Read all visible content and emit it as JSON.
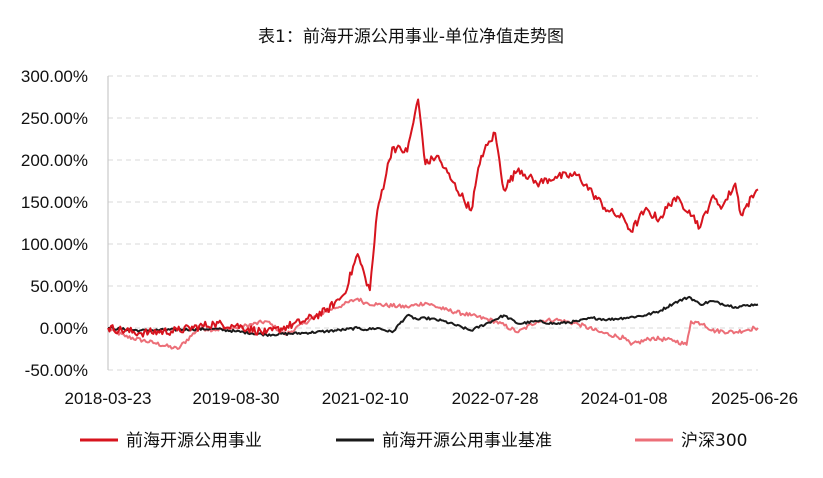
{
  "chart_data": {
    "type": "line",
    "title": "表1：前海开源公用事业-单位净值走势图",
    "xlabel": "",
    "ylabel": "",
    "x_tick_labels": [
      "2018-03-23",
      "2019-08-30",
      "2021-02-10",
      "2022-07-28",
      "2024-01-08",
      "2025-06-26"
    ],
    "y_tick_labels": [
      "300.00%",
      "250.00%",
      "200.00%",
      "150.00%",
      "100.00%",
      "50.00%",
      "0.00%",
      "-50.00%"
    ],
    "y_ticks": [
      300,
      250,
      200,
      150,
      100,
      50,
      0,
      -50
    ],
    "ylim": [
      -50,
      300
    ],
    "xlim": [
      "2018-03-23",
      "2025-07-10"
    ],
    "grid": "horizontal-dashed",
    "legend_position": "bottom",
    "series": [
      {
        "name": "前海开源公用事业",
        "color": "#d7141e",
        "x": [
          "2018-03-23",
          "2018-08-01",
          "2019-01-01",
          "2019-06-01",
          "2019-08-30",
          "2020-01-01",
          "2020-06-01",
          "2020-09-01",
          "2020-11-15",
          "2021-01-10",
          "2021-02-10",
          "2021-03-01",
          "2021-04-01",
          "2021-06-01",
          "2021-08-01",
          "2021-09-15",
          "2021-10-15",
          "2021-12-01",
          "2022-02-01",
          "2022-04-20",
          "2022-06-01",
          "2022-07-28",
          "2022-09-01",
          "2022-11-01",
          "2023-01-15",
          "2023-04-01",
          "2023-07-01",
          "2023-09-01",
          "2023-11-01",
          "2024-01-08",
          "2024-02-05",
          "2024-04-01",
          "2024-06-01",
          "2024-08-01",
          "2024-10-01",
          "2024-11-15",
          "2025-01-01",
          "2025-02-15",
          "2025-04-08",
          "2025-05-01",
          "2025-06-26",
          "2025-07-10"
        ],
        "values": [
          0,
          -6,
          -3,
          5,
          3,
          -6,
          8,
          20,
          40,
          88,
          60,
          45,
          140,
          215,
          210,
          272,
          195,
          205,
          175,
          140,
          205,
          232,
          165,
          190,
          172,
          180,
          182,
          160,
          140,
          130,
          115,
          140,
          130,
          155,
          140,
          120,
          155,
          145,
          172,
          135,
          160,
          165
        ]
      },
      {
        "name": "前海开源公用事业基准",
        "color": "#1a1a1a",
        "x": [
          "2018-03-23",
          "2018-08-01",
          "2019-01-01",
          "2019-06-01",
          "2019-08-30",
          "2020-01-01",
          "2020-06-01",
          "2020-09-01",
          "2020-11-15",
          "2021-01-10",
          "2021-02-10",
          "2021-04-01",
          "2021-06-01",
          "2021-08-01",
          "2021-09-15",
          "2021-10-15",
          "2022-01-01",
          "2022-04-20",
          "2022-07-28",
          "2022-09-01",
          "2022-11-01",
          "2023-01-15",
          "2023-04-01",
          "2023-07-01",
          "2023-09-01",
          "2023-11-01",
          "2024-01-08",
          "2024-04-01",
          "2024-06-01",
          "2024-08-01",
          "2024-10-01",
          "2024-11-15",
          "2025-01-01",
          "2025-04-08",
          "2025-06-26",
          "2025-07-10"
        ],
        "values": [
          0,
          -3,
          -2,
          -1,
          -4,
          -8,
          -6,
          -4,
          -2,
          0,
          -2,
          0,
          -5,
          15,
          10,
          12,
          8,
          -3,
          10,
          15,
          5,
          8,
          5,
          8,
          12,
          10,
          12,
          15,
          20,
          30,
          37,
          28,
          32,
          25,
          28,
          28
        ]
      },
      {
        "name": "沪深300",
        "color": "#ec6f78",
        "x": [
          "2018-03-23",
          "2018-06-01",
          "2018-10-01",
          "2019-01-03",
          "2019-04-01",
          "2019-06-01",
          "2019-08-30",
          "2020-01-01",
          "2020-03-20",
          "2020-07-10",
          "2020-09-01",
          "2020-11-15",
          "2021-01-10",
          "2021-02-10",
          "2021-04-01",
          "2021-08-01",
          "2021-10-15",
          "2022-01-01",
          "2022-04-20",
          "2022-07-28",
          "2022-10-31",
          "2023-01-15",
          "2023-04-01",
          "2023-07-01",
          "2023-10-01",
          "2024-01-08",
          "2024-02-05",
          "2024-05-01",
          "2024-08-01",
          "2024-09-20",
          "2024-10-08",
          "2024-12-01",
          "2025-01-01",
          "2025-04-08",
          "2025-06-26",
          "2025-07-10"
        ],
        "values": [
          0,
          -10,
          -18,
          -25,
          0,
          -2,
          0,
          8,
          -8,
          12,
          20,
          28,
          35,
          30,
          28,
          25,
          30,
          22,
          15,
          8,
          -5,
          8,
          10,
          5,
          -5,
          -12,
          -20,
          -12,
          -15,
          -20,
          8,
          5,
          -3,
          -5,
          0,
          0
        ]
      }
    ]
  }
}
